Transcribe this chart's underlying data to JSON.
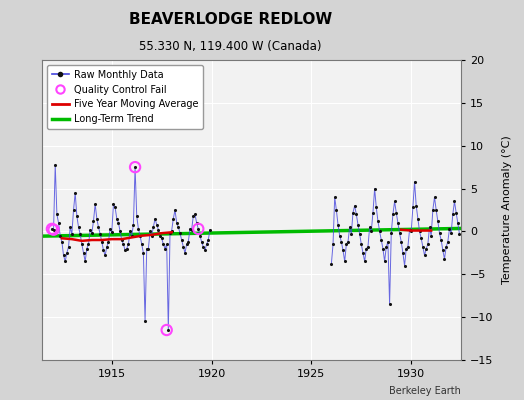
{
  "title": "BEAVERLODGE REDLOW",
  "subtitle": "55.330 N, 119.400 W (Canada)",
  "watermark": "Berkeley Earth",
  "ylabel": "Temperature Anomaly (°C)",
  "xlim": [
    1911.5,
    1932.5
  ],
  "ylim": [
    -15,
    20
  ],
  "yticks": [
    -15,
    -10,
    -5,
    0,
    5,
    10,
    15,
    20
  ],
  "xticks": [
    1915,
    1920,
    1925,
    1930
  ],
  "raw_data_seg1": {
    "x": [
      1912.0,
      1912.083,
      1912.167,
      1912.25,
      1912.333,
      1912.417,
      1912.5,
      1912.583,
      1912.667,
      1912.75,
      1912.833,
      1912.917,
      1913.0,
      1913.083,
      1913.167,
      1913.25,
      1913.333,
      1913.417,
      1913.5,
      1913.583,
      1913.667,
      1913.75,
      1913.833,
      1913.917,
      1914.0,
      1914.083,
      1914.167,
      1914.25,
      1914.333,
      1914.417,
      1914.5,
      1914.583,
      1914.667,
      1914.75,
      1914.833,
      1914.917,
      1915.0,
      1915.083,
      1915.167,
      1915.25,
      1915.333,
      1915.417,
      1915.5,
      1915.583,
      1915.667,
      1915.75,
      1915.833,
      1915.917,
      1916.0,
      1916.083,
      1916.167,
      1916.25,
      1916.333,
      1916.417,
      1916.5,
      1916.583,
      1916.667,
      1916.75,
      1916.833,
      1916.917,
      1917.0,
      1917.083,
      1917.167,
      1917.25,
      1917.333,
      1917.417,
      1917.5,
      1917.583,
      1917.667,
      1917.75,
      1917.833,
      1917.917,
      1918.0,
      1918.083,
      1918.167,
      1918.25,
      1918.333,
      1918.417,
      1918.5,
      1918.583,
      1918.667,
      1918.75,
      1918.833,
      1918.917,
      1919.0,
      1919.083,
      1919.167,
      1919.25,
      1919.333,
      1919.417,
      1919.5,
      1919.583,
      1919.667,
      1919.75,
      1919.833,
      1919.917
    ],
    "y": [
      0.3,
      0.2,
      7.8,
      2.0,
      1.0,
      -0.5,
      -1.2,
      -2.8,
      -3.5,
      -2.5,
      -1.8,
      0.5,
      -0.3,
      2.5,
      4.5,
      1.8,
      0.5,
      -0.3,
      -1.5,
      -2.5,
      -3.5,
      -2.0,
      -1.5,
      0.2,
      -0.2,
      1.2,
      3.2,
      1.5,
      0.5,
      -0.3,
      -1.2,
      -2.2,
      -2.8,
      -1.8,
      -1.2,
      0.3,
      -0.1,
      3.2,
      2.8,
      1.5,
      1.0,
      0.0,
      -1.0,
      -1.5,
      -2.2,
      -2.0,
      -1.5,
      0.1,
      -0.5,
      0.8,
      7.5,
      1.8,
      0.3,
      -0.5,
      -1.5,
      -2.5,
      -10.5,
      -2.0,
      -2.0,
      0.0,
      -0.5,
      0.5,
      1.5,
      0.8,
      0.2,
      -0.5,
      -0.8,
      -1.5,
      -2.0,
      -1.5,
      -11.5,
      -0.2,
      0.1,
      1.5,
      2.5,
      1.0,
      0.5,
      -0.2,
      -1.0,
      -1.8,
      -2.5,
      -1.5,
      -1.2,
      0.3,
      0.2,
      1.8,
      2.0,
      1.0,
      0.3,
      -0.5,
      -1.2,
      -1.8,
      -2.2,
      -1.5,
      -1.0,
      0.2
    ]
  },
  "raw_data_seg2": {
    "x": [
      1926.0,
      1926.083,
      1926.167,
      1926.25,
      1926.333,
      1926.417,
      1926.5,
      1926.583,
      1926.667,
      1926.75,
      1926.833,
      1926.917,
      1927.0,
      1927.083,
      1927.167,
      1927.25,
      1927.333,
      1927.417,
      1927.5,
      1927.583,
      1927.667,
      1927.75,
      1927.833,
      1927.917,
      1928.0,
      1928.083,
      1928.167,
      1928.25,
      1928.333,
      1928.417,
      1928.5,
      1928.583,
      1928.667,
      1928.75,
      1928.833,
      1928.917,
      1929.0,
      1929.083,
      1929.167,
      1929.25,
      1929.333,
      1929.417,
      1929.5,
      1929.583,
      1929.667,
      1929.75,
      1929.833,
      1929.917,
      1930.0,
      1930.083,
      1930.167,
      1930.25,
      1930.333,
      1930.417,
      1930.5,
      1930.583,
      1930.667,
      1930.75,
      1930.833,
      1930.917,
      1931.0,
      1931.083,
      1931.167,
      1931.25,
      1931.333,
      1931.417,
      1931.5,
      1931.583,
      1931.667,
      1931.75,
      1931.833,
      1931.917,
      1932.0,
      1932.083,
      1932.167,
      1932.25,
      1932.333,
      1932.417
    ],
    "y": [
      -3.8,
      -1.5,
      4.0,
      2.5,
      0.8,
      -0.5,
      -1.2,
      -2.2,
      -3.5,
      -1.5,
      -1.2,
      0.5,
      -0.3,
      2.2,
      3.0,
      2.0,
      0.8,
      -0.3,
      -1.5,
      -2.5,
      -3.5,
      -2.0,
      -1.8,
      0.5,
      0.0,
      2.2,
      5.0,
      2.8,
      1.2,
      0.0,
      -1.0,
      -2.0,
      -3.5,
      -1.8,
      -1.2,
      -8.5,
      -0.2,
      2.0,
      3.5,
      2.2,
      1.0,
      -0.2,
      -1.2,
      -2.5,
      -4.0,
      -2.0,
      -1.8,
      0.2,
      0.0,
      2.8,
      5.8,
      3.0,
      1.5,
      0.0,
      -0.8,
      -1.8,
      -2.8,
      -2.0,
      -1.5,
      0.5,
      -0.5,
      2.5,
      4.0,
      2.5,
      1.2,
      -0.2,
      -1.0,
      -2.2,
      -3.2,
      -1.8,
      -1.2,
      0.3,
      -0.2,
      2.0,
      3.5,
      2.2,
      1.0,
      -0.3
    ]
  },
  "qc_fail_points": {
    "x": [
      1912.0,
      1912.083,
      1916.167,
      1917.75,
      1919.333
    ],
    "y": [
      0.3,
      0.2,
      7.5,
      -11.5,
      0.3
    ]
  },
  "five_year_ma_seg1": {
    "x": [
      1912.5,
      1913.0,
      1913.5,
      1914.0,
      1914.5,
      1915.0,
      1915.5,
      1916.0,
      1916.5,
      1917.0,
      1917.5,
      1918.0
    ],
    "y": [
      -0.8,
      -0.9,
      -1.1,
      -1.0,
      -1.0,
      -0.9,
      -0.9,
      -0.7,
      -0.5,
      -0.4,
      -0.2,
      -0.1
    ]
  },
  "five_year_ma_seg2": {
    "x": [
      1929.5,
      1930.0,
      1930.5,
      1931.0
    ],
    "y": [
      0.2,
      0.1,
      0.1,
      0.1
    ]
  },
  "long_term_trend": {
    "x": [
      1911.5,
      1932.5
    ],
    "y": [
      -0.55,
      0.35
    ]
  },
  "raw_color": "#4444dd",
  "raw_marker_color": "#111111",
  "qc_color": "#ff44ff",
  "ma_color": "#dd0000",
  "trend_color": "#00bb00",
  "bg_color": "#d4d4d4",
  "plot_bg_color": "#f2f2f2",
  "grid_color": "#ffffff"
}
